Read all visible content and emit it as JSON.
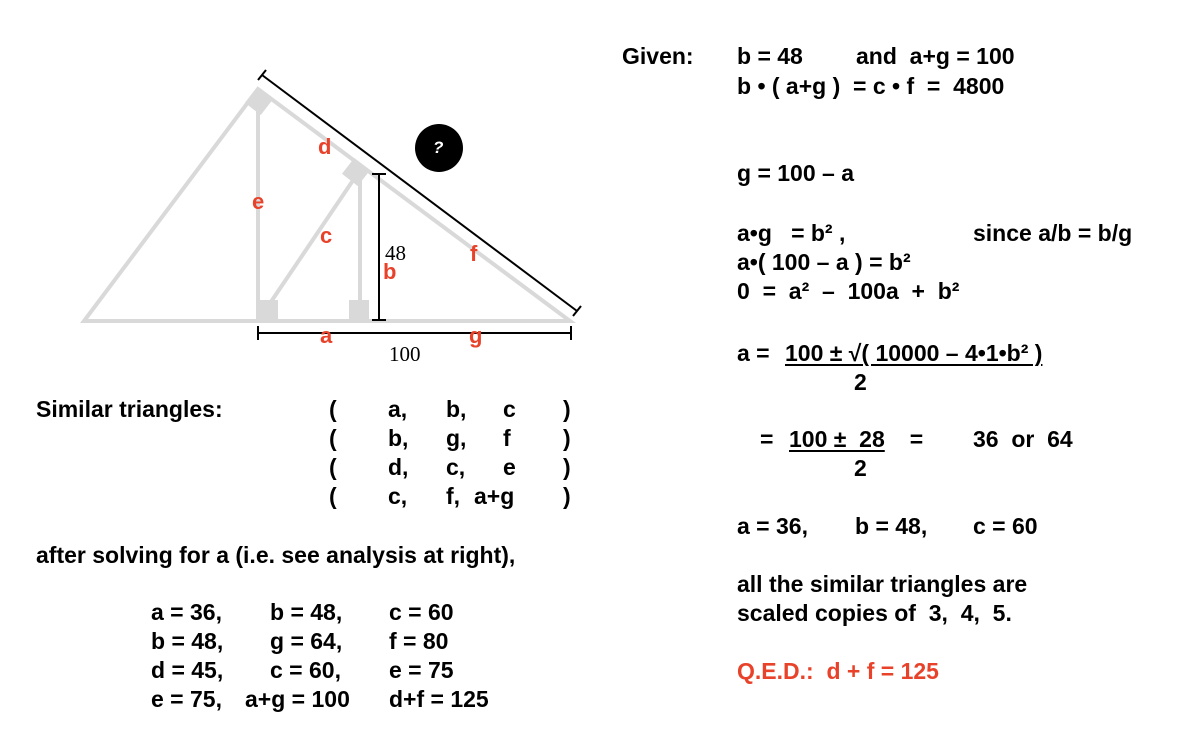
{
  "colors": {
    "accent_red": "#e8432a",
    "triangle_gray": "#d9d9d9",
    "ink": "#000000"
  },
  "diagram": {
    "labels": {
      "a": "a",
      "b": "b",
      "c": "c",
      "d": "d",
      "e": "e",
      "f": "f",
      "g": "g"
    },
    "dimension_48": "48",
    "dimension_100": "100",
    "question_mark": "?"
  },
  "left": {
    "similar_title": "Similar triangles:",
    "similar_rows": [
      {
        "open": "(",
        "c1": "a,",
        "c2": "b,",
        "c3": "c",
        "close": ")"
      },
      {
        "open": "(",
        "c1": "b,",
        "c2": "g,",
        "c3": "f",
        "close": ")"
      },
      {
        "open": "(",
        "c1": "d,",
        "c2": "c,",
        "c3": "e",
        "close": ")"
      },
      {
        "open": "(",
        "c1": "c,",
        "c2": "f,",
        "c3": "a+g",
        "close": ")"
      }
    ],
    "after_solving": "after solving for a (i.e. see analysis at right),",
    "results": [
      {
        "c1": "a = 36,",
        "c2": "b = 48,",
        "c3": "c = 60"
      },
      {
        "c1": "b = 48,",
        "c2": "g = 64,",
        "c3": "f = 80"
      },
      {
        "c1": "d = 45,",
        "c2": "c = 60,",
        "c3": "e = 75"
      },
      {
        "c1": "e = 75,",
        "c2": "a+g = 100",
        "c3": "d+f = 125"
      }
    ]
  },
  "right": {
    "given_label": "Given:",
    "given_line1a": "b = 48",
    "given_line1b": "and  a+g = 100",
    "given_line2": "b • ( a+g )  = c • f  =  4800",
    "g_eq": "g = 100 – a",
    "ag_eq": "a•g   = b² ,",
    "since": "since a/b = b/g",
    "a_paren": "a•( 100 – a ) = b²",
    "zero_eq": "0  =  a²  –  100a  +  b²",
    "quad_lhs": "a = ",
    "quad_num": "100 ± √( 10000 – 4•1•b² )",
    "quad_den": "2",
    "eq2_lhs": "= ",
    "eq2_num": "100 ±  28",
    "eq2_mid": "  =",
    "eq2_den": "2",
    "eq2_result": "36  or  64",
    "abc_a": "a = 36,",
    "abc_b": "b = 48,",
    "abc_c": "c = 60",
    "similar_note_1": "all the similar triangles are",
    "similar_note_2": "scaled copies of  3,  4,  5.",
    "qed": "Q.E.D.:  d + f = 125"
  }
}
